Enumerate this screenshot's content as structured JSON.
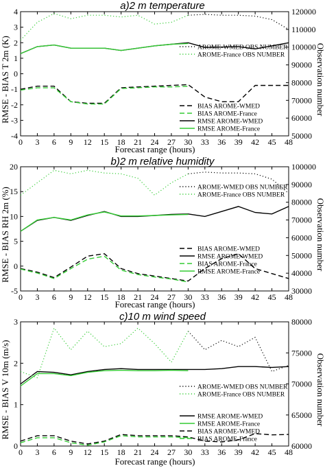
{
  "colors": {
    "black": "#000000",
    "green": "#33cc33"
  },
  "chart_data": [
    {
      "type": "line",
      "title": "a)2 m temperature",
      "xlabel": "Forecast range (hours)",
      "ylabel": "RMSE - BIAS T 2m (K)",
      "y2label": "Observation number",
      "x_ticks": [
        0,
        3,
        6,
        9,
        12,
        15,
        18,
        21,
        24,
        27,
        30,
        33,
        36,
        39,
        42,
        45,
        48
      ],
      "xlim": [
        0,
        48
      ],
      "ylim": [
        -4,
        4
      ],
      "y_ticks": [
        -4,
        -3,
        -2,
        -1,
        0,
        1,
        2,
        3,
        4
      ],
      "y2lim": [
        50000,
        120000
      ],
      "y2_ticks": [
        50000,
        60000,
        70000,
        80000,
        90000,
        100000,
        110000,
        120000
      ],
      "legend_top": [
        {
          "label": "AROME-WMED OBS NUMBER",
          "color": "#000000",
          "style": "dotted"
        },
        {
          "label": "AROME-France OBS NUMBER",
          "color": "#33cc33",
          "style": "dotted"
        }
      ],
      "legend_bottom": [
        {
          "label": "BIAS AROME-WMED",
          "color": "#000000",
          "style": "dashed"
        },
        {
          "label": "BIAS AROME-France",
          "color": "#33cc33",
          "style": "dashed"
        },
        {
          "label": "RMSE AROME-WMED",
          "color": "#000000",
          "style": "solid"
        },
        {
          "label": "RMSE AROME-France",
          "color": "#33cc33",
          "style": "solid"
        }
      ],
      "series": [
        {
          "name": "RMSE AROME-WMED",
          "axis": "left",
          "color": "#000000",
          "style": "solid",
          "width": 1.4,
          "x": [
            0,
            3,
            6,
            9,
            12,
            15,
            18,
            21,
            24,
            27,
            30,
            33,
            36,
            39,
            42,
            45,
            48
          ],
          "values": [
            1.3,
            1.75,
            1.85,
            1.65,
            1.65,
            1.65,
            1.5,
            1.65,
            1.8,
            1.9,
            2.0,
            1.7,
            1.72,
            1.75,
            1.6,
            1.8,
            2.0
          ]
        },
        {
          "name": "RMSE AROME-France",
          "axis": "left",
          "color": "#33cc33",
          "style": "solid",
          "width": 1.4,
          "x": [
            0,
            3,
            6,
            9,
            12,
            15,
            18,
            21,
            24,
            27,
            30
          ],
          "values": [
            1.3,
            1.75,
            1.85,
            1.65,
            1.65,
            1.65,
            1.5,
            1.65,
            1.8,
            1.9,
            1.95
          ]
        },
        {
          "name": "BIAS AROME-WMED",
          "axis": "left",
          "color": "#000000",
          "style": "dashed",
          "width": 1.4,
          "x": [
            0,
            3,
            6,
            9,
            12,
            15,
            18,
            21,
            24,
            27,
            30,
            33,
            36,
            39,
            42,
            45,
            48
          ],
          "values": [
            -1.0,
            -0.8,
            -0.8,
            -1.8,
            -1.9,
            -1.9,
            -0.9,
            -0.85,
            -0.8,
            -0.75,
            -0.7,
            -1.5,
            -1.8,
            -1.8,
            -0.75,
            -0.75,
            -0.75
          ]
        },
        {
          "name": "BIAS AROME-France",
          "axis": "left",
          "color": "#33cc33",
          "style": "dashed",
          "width": 1.4,
          "x": [
            0,
            3,
            6,
            9,
            12,
            15,
            18,
            21,
            24,
            27,
            30
          ],
          "values": [
            -1.05,
            -0.9,
            -0.9,
            -1.8,
            -1.95,
            -1.95,
            -0.95,
            -0.9,
            -0.85,
            -0.85,
            -0.8
          ]
        },
        {
          "name": "AROME-WMED OBS NUMBER",
          "axis": "right",
          "color": "#000000",
          "style": "dotted",
          "width": 1.2,
          "x": [
            30,
            33,
            36,
            39,
            42,
            45,
            48
          ],
          "values": [
            118000,
            118500,
            118000,
            118000,
            117500,
            115500,
            110000
          ]
        },
        {
          "name": "AROME-France OBS NUMBER",
          "axis": "right",
          "color": "#33cc33",
          "style": "dotted",
          "width": 1.2,
          "x": [
            0,
            3,
            6,
            9,
            12,
            15,
            18,
            21,
            24,
            27,
            30
          ],
          "values": [
            104000,
            114000,
            119000,
            116000,
            118000,
            118000,
            117000,
            118000,
            113000,
            114000,
            118000
          ]
        }
      ]
    },
    {
      "type": "line",
      "title": "b)2 m relative humidity",
      "xlabel": "Forecast range (hours)",
      "ylabel": "RMSE - BIAS RH 2m (%)",
      "y2label": "Observation number",
      "x_ticks": [
        0,
        3,
        6,
        9,
        12,
        15,
        18,
        21,
        24,
        27,
        30,
        33,
        36,
        39,
        42,
        45,
        48
      ],
      "xlim": [
        0,
        48
      ],
      "ylim": [
        -5,
        20
      ],
      "y_ticks": [
        -5,
        0,
        5,
        10,
        15,
        20
      ],
      "y2lim": [
        30000,
        100000
      ],
      "y2_ticks": [
        30000,
        40000,
        50000,
        60000,
        70000,
        80000,
        90000,
        100000
      ],
      "legend_top": [
        {
          "label": "AROME-WMED OBS NUMBER",
          "color": "#000000",
          "style": "dotted"
        },
        {
          "label": "AROME-France OBS NUMBER",
          "color": "#33cc33",
          "style": "dotted"
        }
      ],
      "legend_bottom": [
        {
          "label": "BIAS AROME-WMED",
          "color": "#000000",
          "style": "dashed"
        },
        {
          "label": "RMSE AROME-WMED",
          "color": "#000000",
          "style": "solid"
        },
        {
          "label": "BIAS AROME-France",
          "color": "#33cc33",
          "style": "dashed"
        },
        {
          "label": "RMSE AROME-France",
          "color": "#33cc33",
          "style": "solid"
        }
      ],
      "series": [
        {
          "name": "RMSE AROME-WMED",
          "axis": "left",
          "color": "#000000",
          "style": "solid",
          "width": 1.4,
          "x": [
            0,
            3,
            6,
            9,
            12,
            15,
            18,
            21,
            24,
            27,
            30,
            33,
            36,
            39,
            42,
            45,
            48
          ],
          "values": [
            7.0,
            9.2,
            9.8,
            9.2,
            10.2,
            11.0,
            10.0,
            10.0,
            10.2,
            10.4,
            10.5,
            10.0,
            11.0,
            12.0,
            10.8,
            10.5,
            12.0
          ]
        },
        {
          "name": "RMSE AROME-France",
          "axis": "left",
          "color": "#33cc33",
          "style": "solid",
          "width": 1.4,
          "x": [
            0,
            3,
            6,
            9,
            12,
            15,
            18,
            21,
            24,
            27,
            30
          ],
          "values": [
            7.0,
            9.3,
            9.8,
            9.3,
            10.3,
            10.9,
            10.1,
            10.1,
            10.2,
            10.3,
            10.4
          ]
        },
        {
          "name": "BIAS AROME-WMED",
          "axis": "left",
          "color": "#000000",
          "style": "dashed",
          "width": 1.4,
          "x": [
            0,
            3,
            6,
            9,
            12,
            15,
            18,
            21,
            24,
            27,
            30,
            33,
            36,
            39,
            42,
            45,
            48
          ],
          "values": [
            -0.5,
            -1.2,
            -2.3,
            -0.2,
            2.0,
            2.5,
            -0.5,
            -1.5,
            -2.0,
            -2.5,
            -3.0,
            -0.5,
            1.5,
            2.5,
            -0.5,
            -1.5,
            -2.5
          ]
        },
        {
          "name": "BIAS AROME-France",
          "axis": "left",
          "color": "#33cc33",
          "style": "dashed",
          "width": 1.4,
          "x": [
            0,
            3,
            6,
            9,
            12,
            15,
            18,
            21,
            24,
            27,
            30
          ],
          "values": [
            -0.6,
            -1.4,
            -2.5,
            -0.5,
            1.4,
            2.0,
            -0.8,
            -1.7,
            -2.2,
            -2.6,
            -3.2
          ]
        },
        {
          "name": "AROME-WMED OBS NUMBER",
          "axis": "right",
          "color": "#000000",
          "style": "dotted",
          "width": 1.2,
          "x": [
            30,
            33,
            36,
            39,
            42,
            45,
            48
          ],
          "values": [
            96000,
            97000,
            96500,
            96500,
            96000,
            93000,
            85000
          ]
        },
        {
          "name": "AROME-France OBS NUMBER",
          "axis": "right",
          "color": "#33cc33",
          "style": "dotted",
          "width": 1.2,
          "x": [
            0,
            3,
            6,
            9,
            12,
            15,
            18,
            21,
            24,
            27,
            30
          ],
          "values": [
            84000,
            91000,
            98000,
            96000,
            98000,
            96500,
            96000,
            93500,
            84000,
            91000,
            96000
          ]
        }
      ]
    },
    {
      "type": "line",
      "title": "c)10 m wind speed",
      "xlabel": "Forecast range (hours)",
      "ylabel": "RMSE - BIAS V 10m (m/s)",
      "y2label": "Observation number",
      "x_ticks": [
        0,
        3,
        6,
        9,
        12,
        15,
        18,
        21,
        24,
        27,
        30,
        33,
        36,
        39,
        42,
        45,
        48
      ],
      "xlim": [
        0,
        48
      ],
      "ylim": [
        0,
        3
      ],
      "y_ticks": [
        0,
        1,
        2,
        3
      ],
      "y2lim": [
        60000,
        80000
      ],
      "y2_ticks": [
        60000,
        65000,
        70000,
        75000,
        80000
      ],
      "legend_top": [
        {
          "label": "AROME-WMED OBS NUMBER",
          "color": "#000000",
          "style": "dotted"
        },
        {
          "label": "AROME-France OBS NUMBER",
          "color": "#33cc33",
          "style": "dotted"
        }
      ],
      "legend_bottom": [
        {
          "label": "RMSE AROME-WMED",
          "color": "#000000",
          "style": "solid"
        },
        {
          "label": "RMSE AROME-France",
          "color": "#33cc33",
          "style": "solid"
        },
        {
          "label": "BIAS AROME-WMED",
          "color": "#000000",
          "style": "dashed"
        },
        {
          "label": "BIAS AROME-France",
          "color": "#33cc33",
          "style": "dashed"
        }
      ],
      "series": [
        {
          "name": "RMSE AROME-WMED",
          "axis": "left",
          "color": "#000000",
          "style": "solid",
          "width": 1.4,
          "x": [
            0,
            3,
            6,
            9,
            12,
            15,
            18,
            21,
            24,
            27,
            30,
            33,
            36,
            39,
            42,
            45,
            48
          ],
          "values": [
            1.5,
            1.8,
            1.78,
            1.72,
            1.8,
            1.85,
            1.87,
            1.85,
            1.85,
            1.85,
            1.85,
            1.85,
            1.87,
            1.92,
            1.92,
            1.9,
            1.92
          ]
        },
        {
          "name": "RMSE AROME-France",
          "axis": "left",
          "color": "#33cc33",
          "style": "solid",
          "width": 1.4,
          "x": [
            0,
            3,
            6,
            9,
            12,
            15,
            18,
            21,
            24,
            27,
            30
          ],
          "values": [
            1.45,
            1.75,
            1.75,
            1.7,
            1.78,
            1.82,
            1.83,
            1.82,
            1.82,
            1.83,
            1.82
          ]
        },
        {
          "name": "BIAS AROME-WMED",
          "axis": "left",
          "color": "#000000",
          "style": "dashed",
          "width": 1.4,
          "x": [
            0,
            3,
            6,
            9,
            12,
            15,
            18,
            21,
            24,
            27,
            30,
            33,
            36,
            39,
            42,
            45,
            48
          ],
          "values": [
            0.12,
            0.25,
            0.25,
            0.12,
            0.05,
            0.12,
            0.28,
            0.25,
            0.25,
            0.25,
            0.22,
            0.12,
            0.1,
            0.15,
            0.3,
            0.27,
            0.28
          ]
        },
        {
          "name": "BIAS AROME-France",
          "axis": "left",
          "color": "#33cc33",
          "style": "dashed",
          "width": 1.4,
          "x": [
            0,
            3,
            6,
            9,
            12,
            15,
            18,
            21,
            24,
            27,
            30
          ],
          "values": [
            0.08,
            0.2,
            0.2,
            0.08,
            0.02,
            0.1,
            0.25,
            0.22,
            0.22,
            0.22,
            0.2
          ]
        },
        {
          "name": "AROME-WMED OBS NUMBER",
          "axis": "right",
          "color": "#000000",
          "style": "dotted",
          "width": 1.2,
          "x": [
            30,
            33,
            36,
            39,
            42,
            45,
            48
          ],
          "values": [
            78500,
            75500,
            77000,
            76000,
            77500,
            72000,
            73000
          ]
        },
        {
          "name": "AROME-France OBS NUMBER",
          "axis": "right",
          "color": "#33cc33",
          "style": "dotted",
          "width": 1.2,
          "x": [
            0,
            3,
            6,
            9,
            12,
            15,
            18,
            21,
            24,
            27,
            30
          ],
          "values": [
            72000,
            71000,
            79000,
            75500,
            78500,
            76000,
            76500,
            79000,
            76500,
            73500,
            78500
          ]
        }
      ]
    }
  ]
}
